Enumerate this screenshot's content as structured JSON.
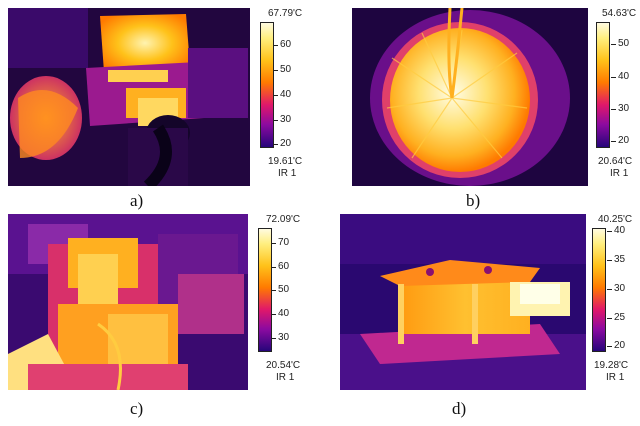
{
  "panels": [
    {
      "caption": "a)",
      "tmax": "67.79'C",
      "tmin": "19.61'C",
      "ir": "IR 1",
      "ticks": [
        "60",
        "50",
        "40",
        "30",
        "20"
      ]
    },
    {
      "caption": "b)",
      "tmax": "54.63'C",
      "tmin": "20.64'C",
      "ir": "IR 1",
      "ticks": [
        "50",
        "40",
        "30",
        "20"
      ]
    },
    {
      "caption": "c)",
      "tmax": "72.09'C",
      "tmin": "20.54'C",
      "ir": "IR 1",
      "ticks": [
        "70",
        "60",
        "50",
        "40",
        "30"
      ]
    },
    {
      "caption": "d)",
      "tmax": "40.25'C",
      "tmin": "19.28'C",
      "ir": "IR 1",
      "ticks": [
        "40",
        "35",
        "30",
        "25",
        "20"
      ]
    }
  ]
}
